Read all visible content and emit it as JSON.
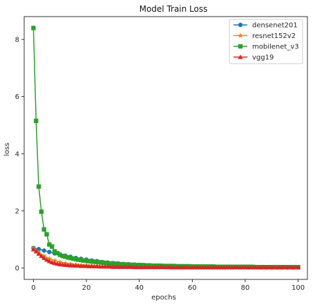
{
  "chart_data": {
    "type": "line",
    "title": "Model Train Loss",
    "xlabel": "epochs",
    "ylabel": "loss",
    "xlim": [
      -3.5,
      103.5
    ],
    "ylim": [
      -0.4,
      8.8
    ],
    "xticks": [
      0,
      20,
      40,
      60,
      80,
      100
    ],
    "yticks": [
      0,
      2,
      4,
      6,
      8
    ],
    "legend_position": "top-right",
    "grid": false,
    "series": [
      {
        "name": "densenet201",
        "color": "#1f77b4",
        "marker": "circle",
        "x_start": 0,
        "x_step": 2,
        "values": [
          0.7,
          0.66,
          0.61,
          0.56,
          0.51,
          0.47,
          0.43,
          0.39,
          0.35,
          0.32,
          0.29,
          0.26,
          0.24,
          0.21,
          0.19,
          0.17,
          0.16,
          0.14,
          0.13,
          0.12,
          0.11,
          0.1,
          0.09,
          0.08,
          0.08,
          0.07,
          0.07,
          0.06,
          0.06,
          0.05,
          0.05,
          0.05,
          0.04,
          0.04,
          0.04,
          0.04,
          0.03,
          0.03,
          0.03,
          0.03,
          0.03,
          0.03,
          0.03,
          0.02,
          0.02,
          0.02,
          0.02,
          0.02,
          0.02,
          0.02,
          0.02
        ]
      },
      {
        "name": "resnet152v2",
        "color": "#ff7f0e",
        "marker": "star",
        "x_start": 0,
        "x_step": 2,
        "values": [
          0.7,
          0.55,
          0.42,
          0.33,
          0.26,
          0.21,
          0.17,
          0.14,
          0.12,
          0.1,
          0.09,
          0.08,
          0.07,
          0.06,
          0.05,
          0.05,
          0.04,
          0.04,
          0.03,
          0.03,
          0.03,
          0.03,
          0.02,
          0.02,
          0.02,
          0.02,
          0.02,
          0.02,
          0.02,
          0.01,
          0.01,
          0.01,
          0.01,
          0.01,
          0.01,
          0.01,
          0.01,
          0.01,
          0.01,
          0.01,
          0.01,
          0.01,
          0.01,
          0.01,
          0.01,
          0.01,
          0.01,
          0.01,
          0.01,
          0.01,
          0.01
        ]
      },
      {
        "name": "mobilenet_v3",
        "color": "#2ca02c",
        "marker": "square",
        "x_start": 0,
        "x_step": 1,
        "values": [
          8.4,
          5.15,
          2.85,
          1.97,
          1.35,
          1.18,
          0.82,
          0.75,
          0.58,
          0.52,
          0.46,
          0.42,
          0.4,
          0.37,
          0.35,
          0.33,
          0.31,
          0.29,
          0.28,
          0.26,
          0.25,
          0.24,
          0.23,
          0.22,
          0.21,
          0.2,
          0.19,
          0.18,
          0.17,
          0.16,
          0.15,
          0.15,
          0.14,
          0.13,
          0.13,
          0.12,
          0.12,
          0.11,
          0.11,
          0.1,
          0.1,
          0.1,
          0.09,
          0.09,
          0.09,
          0.08,
          0.08,
          0.08,
          0.08,
          0.07,
          0.07,
          0.07,
          0.07,
          0.07,
          0.06,
          0.06,
          0.06,
          0.06,
          0.06,
          0.06,
          0.05,
          0.05,
          0.05,
          0.05,
          0.05,
          0.05,
          0.05,
          0.05,
          0.05,
          0.04,
          0.04,
          0.04,
          0.04,
          0.04,
          0.04,
          0.04,
          0.04,
          0.04,
          0.04,
          0.04,
          0.04,
          0.04,
          0.04,
          0.04,
          0.03,
          0.03,
          0.03,
          0.03,
          0.03,
          0.03,
          0.03,
          0.03,
          0.03,
          0.03,
          0.03,
          0.03,
          0.03,
          0.03,
          0.03,
          0.03,
          0.03
        ]
      },
      {
        "name": "vgg19",
        "color": "#d62728",
        "marker": "triangle",
        "x_start": 0,
        "x_step": 1,
        "values": [
          0.65,
          0.58,
          0.5,
          0.42,
          0.35,
          0.29,
          0.24,
          0.2,
          0.17,
          0.15,
          0.13,
          0.12,
          0.11,
          0.1,
          0.09,
          0.09,
          0.08,
          0.08,
          0.07,
          0.07,
          0.07,
          0.06,
          0.06,
          0.06,
          0.06,
          0.05,
          0.05,
          0.05,
          0.05,
          0.05,
          0.04,
          0.04,
          0.04,
          0.04,
          0.04,
          0.04,
          0.04,
          0.04,
          0.03,
          0.03,
          0.03,
          0.03,
          0.03,
          0.03,
          0.03,
          0.03,
          0.03,
          0.03,
          0.03,
          0.03,
          0.03,
          0.03,
          0.02,
          0.02,
          0.02,
          0.02,
          0.02,
          0.02,
          0.02,
          0.02,
          0.02,
          0.02,
          0.02,
          0.02,
          0.02,
          0.02,
          0.02,
          0.02,
          0.02,
          0.02,
          0.02,
          0.02,
          0.02,
          0.02,
          0.02,
          0.02,
          0.02,
          0.02,
          0.02,
          0.02,
          0.02,
          0.02,
          0.02,
          0.02,
          0.02,
          0.02,
          0.02,
          0.02,
          0.02,
          0.02,
          0.02,
          0.02,
          0.02,
          0.02,
          0.02,
          0.02,
          0.02,
          0.02,
          0.02,
          0.02,
          0.02
        ]
      }
    ]
  }
}
